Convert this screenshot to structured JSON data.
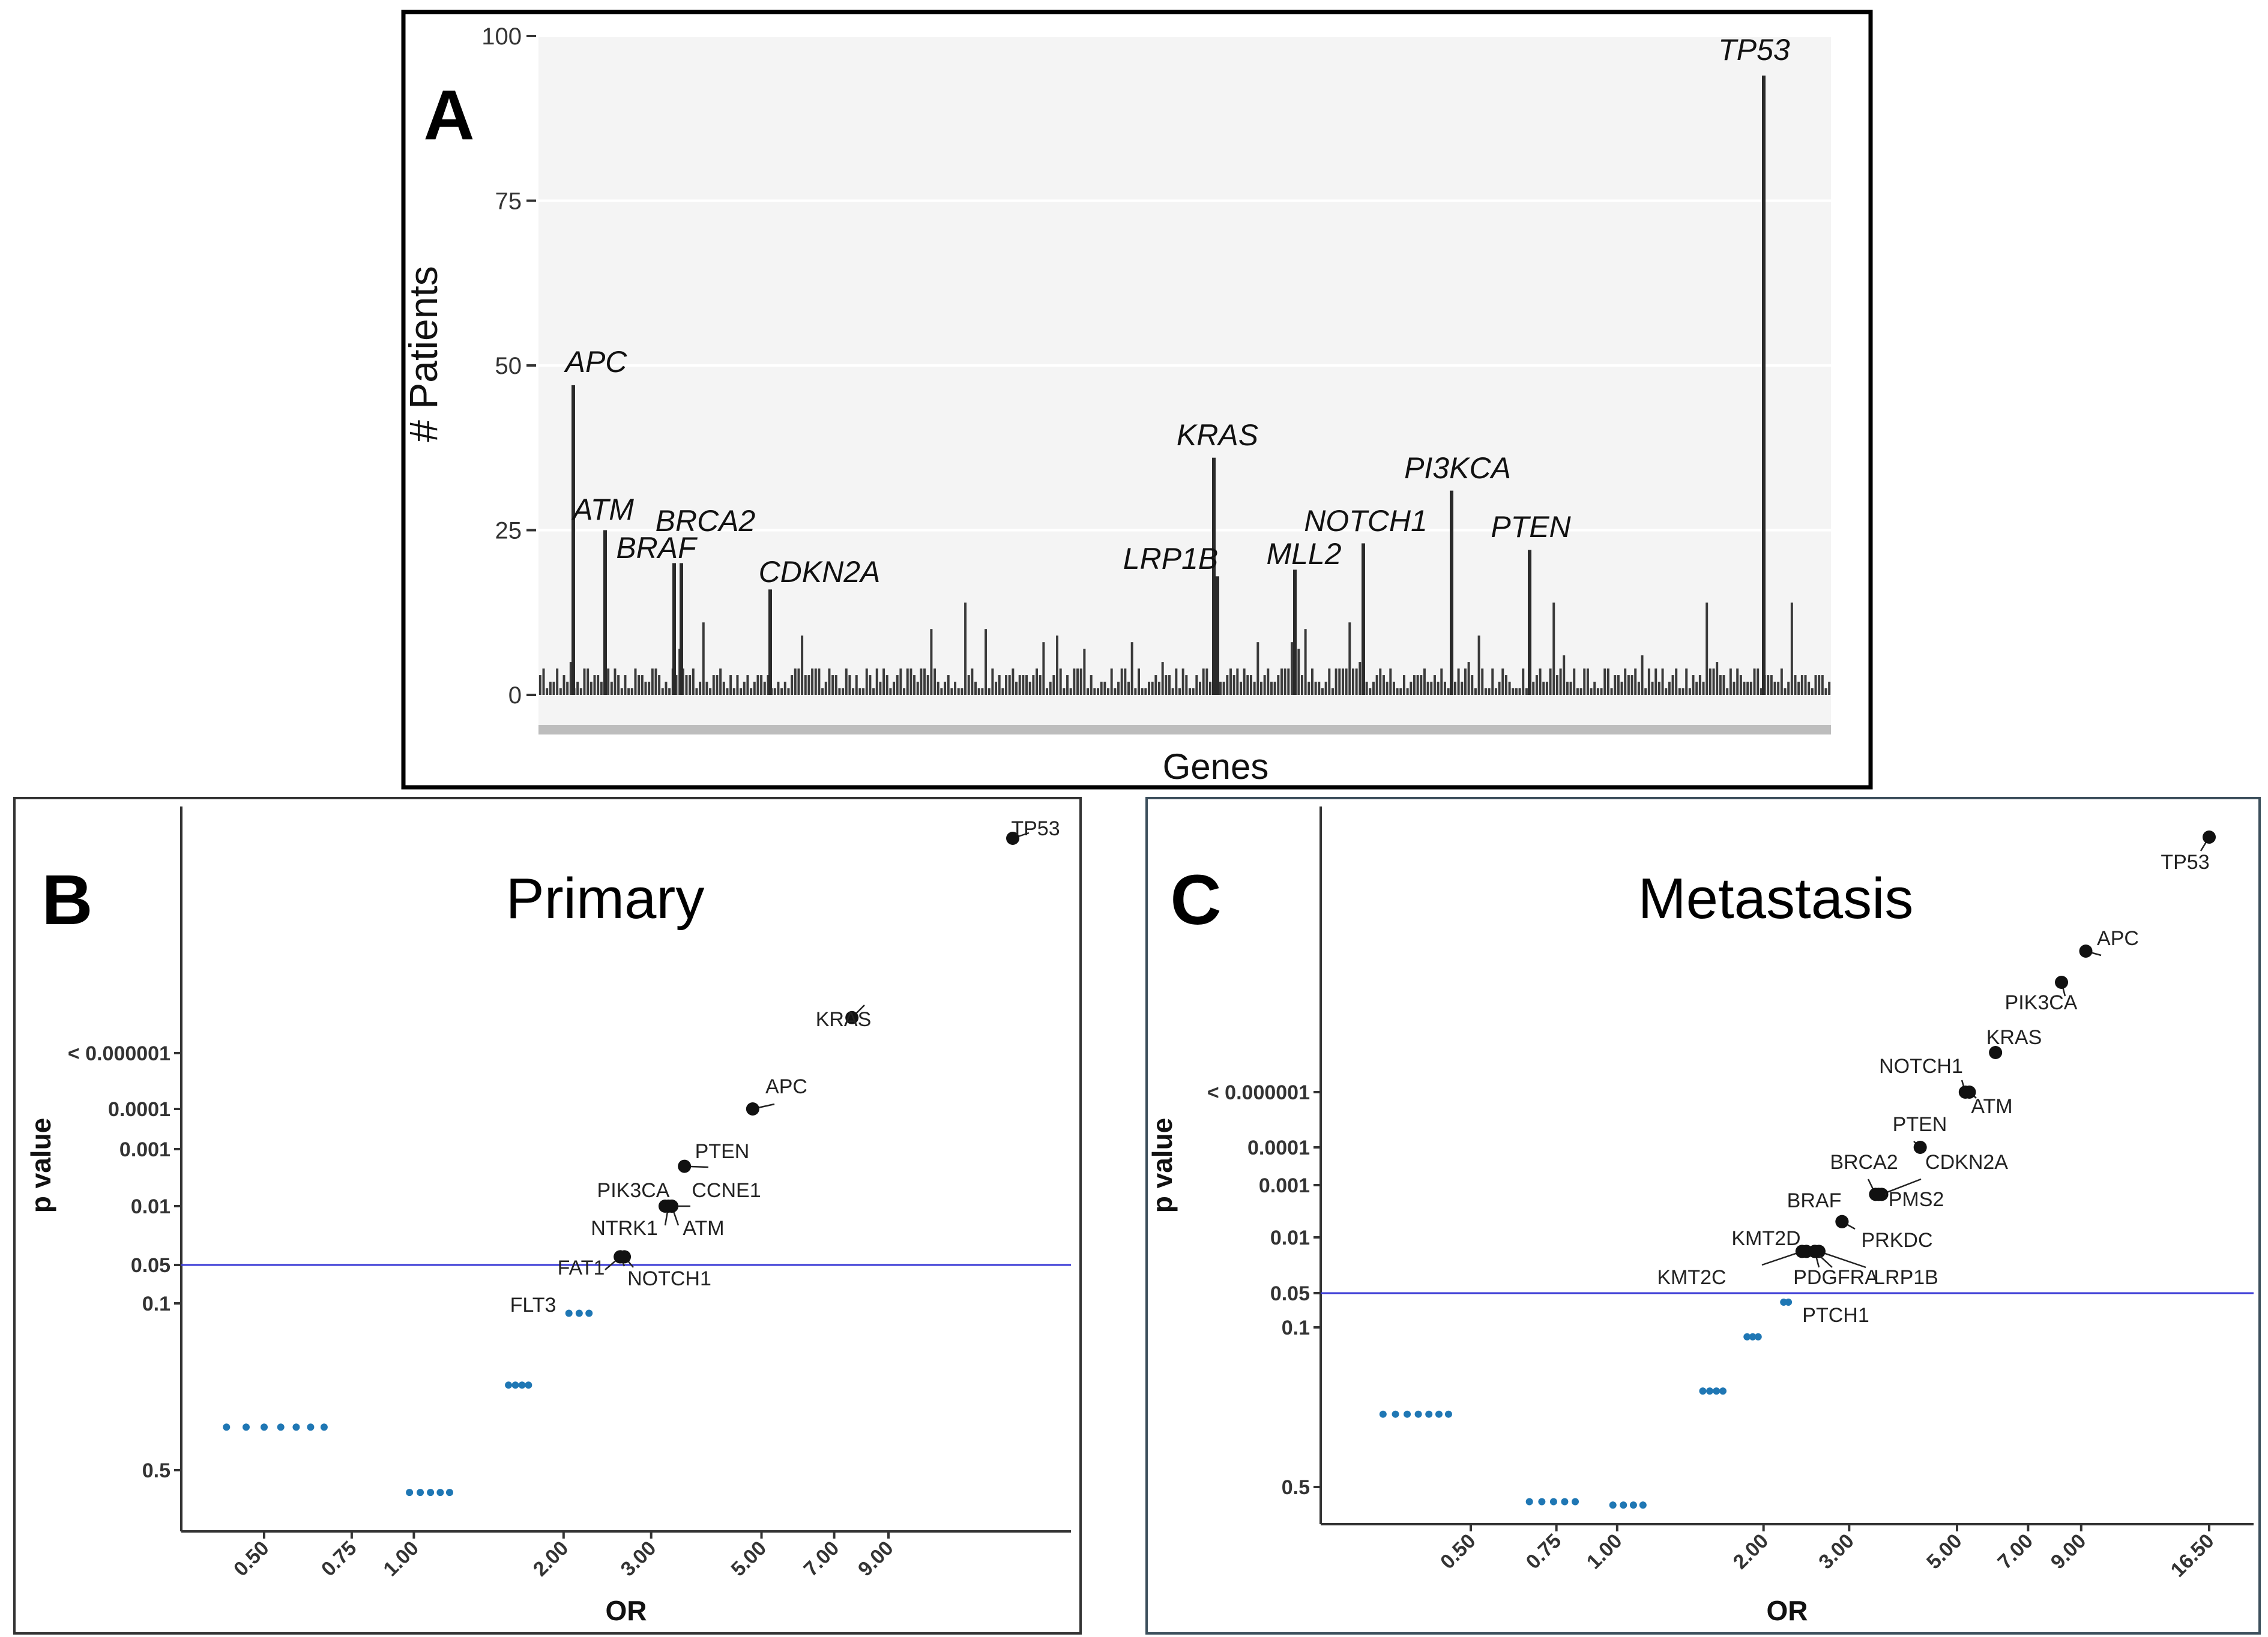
{
  "figure": {
    "panel_a_letter": "A",
    "panel_b_letter": "B",
    "panel_c_letter": "C"
  },
  "chart_data": [
    {
      "panel": "A",
      "type": "bar",
      "title": "",
      "xlabel": "Genes",
      "ylabel": "# Patients",
      "ylim": [
        0,
        100
      ],
      "yticks": [
        0,
        25,
        50,
        75,
        100
      ],
      "grid": true,
      "labeled_genes": [
        {
          "gene": "APC",
          "value": 47
        },
        {
          "gene": "ATM",
          "value": 25
        },
        {
          "gene": "BRCA2",
          "value": 20
        },
        {
          "gene": "BRAF",
          "value": 20
        },
        {
          "gene": "CDKN2A",
          "value": 16
        },
        {
          "gene": "KRAS",
          "value": 36
        },
        {
          "gene": "LRP1B",
          "value": 18
        },
        {
          "gene": "MLL2",
          "value": 19
        },
        {
          "gene": "NOTCH1",
          "value": 23
        },
        {
          "gene": "PI3KCA",
          "value": 31
        },
        {
          "gene": "PTEN",
          "value": 22
        },
        {
          "gene": "TP53",
          "value": 94
        }
      ]
    },
    {
      "panel": "B",
      "type": "scatter",
      "title": "Primary",
      "xlabel": "OR",
      "ylabel": "p value",
      "xscale": "log",
      "xticks": [
        "0.50",
        "0.75",
        "1.00",
        "2.00",
        "3.00",
        "5.00",
        "7.00",
        "9.00"
      ],
      "yscale": "-log10",
      "yticks": [
        "0.5",
        "0.1",
        "0.05",
        "0.01",
        "0.001",
        "0.0001",
        "< 0.000001"
      ],
      "significance_line_p": 0.05,
      "labeled_points": [
        {
          "gene": "TP53",
          "or": 16,
          "p": 1e-10
        },
        {
          "gene": "KRAS",
          "or": 7.6,
          "p": 5e-08
        },
        {
          "gene": "APC",
          "or": 4.8,
          "p": 0.0001
        },
        {
          "gene": "PTEN",
          "or": 3.5,
          "p": 0.002
        },
        {
          "gene": "PIK3CA",
          "or": 3.2,
          "p": 0.01
        },
        {
          "gene": "CCNE1",
          "or": 3.3,
          "p": 0.01
        },
        {
          "gene": "NTRK1",
          "or": 3.25,
          "p": 0.01
        },
        {
          "gene": "ATM",
          "or": 3.3,
          "p": 0.01
        },
        {
          "gene": "FAT1",
          "or": 2.6,
          "p": 0.04
        },
        {
          "gene": "NOTCH1",
          "or": 2.65,
          "p": 0.04
        },
        {
          "gene": "FLT3",
          "or": 2.6,
          "p": 0.04
        }
      ],
      "nonsignificant_points": [
        {
          "or": 2.05,
          "p": 0.11
        },
        {
          "or": 2.15,
          "p": 0.11
        },
        {
          "or": 2.25,
          "p": 0.11
        },
        {
          "or": 1.55,
          "p": 0.22
        },
        {
          "or": 1.6,
          "p": 0.22
        },
        {
          "or": 1.65,
          "p": 0.22
        },
        {
          "or": 1.7,
          "p": 0.22
        },
        {
          "or": 0.42,
          "p": 0.33
        },
        {
          "or": 0.46,
          "p": 0.33
        },
        {
          "or": 0.5,
          "p": 0.33
        },
        {
          "or": 0.54,
          "p": 0.33
        },
        {
          "or": 0.58,
          "p": 0.33
        },
        {
          "or": 0.62,
          "p": 0.33
        },
        {
          "or": 0.66,
          "p": 0.33
        },
        {
          "or": 0.98,
          "p": 0.62
        },
        {
          "or": 1.03,
          "p": 0.62
        },
        {
          "or": 1.08,
          "p": 0.62
        },
        {
          "or": 1.13,
          "p": 0.62
        },
        {
          "or": 1.18,
          "p": 0.62
        }
      ]
    },
    {
      "panel": "C",
      "type": "scatter",
      "title": "Metastasis",
      "xlabel": "OR",
      "ylabel": "p value",
      "xscale": "log",
      "xticks": [
        "0.50",
        "0.75",
        "1.00",
        "2.00",
        "3.00",
        "5.00",
        "7.00",
        "9.00",
        "16.50"
      ],
      "yscale": "-log10",
      "yticks": [
        "0.5",
        "0.1",
        "0.05",
        "0.01",
        "0.001",
        "0.0001",
        "< 0.000001"
      ],
      "significance_line_p": 0.05,
      "labeled_points": [
        {
          "gene": "TP53",
          "or": 16.5,
          "p": 1e-14
        },
        {
          "gene": "APC",
          "or": 9.2,
          "p": 1e-11
        },
        {
          "gene": "PIK3CA",
          "or": 8.2,
          "p": 1e-10
        },
        {
          "gene": "KRAS",
          "or": 6.0,
          "p": 1e-08
        },
        {
          "gene": "NOTCH1",
          "or": 5.2,
          "p": 1e-06
        },
        {
          "gene": "ATM",
          "or": 5.3,
          "p": 1e-06
        },
        {
          "gene": "PTEN",
          "or": 4.2,
          "p": 0.0001
        },
        {
          "gene": "BRCA2",
          "or": 3.4,
          "p": 0.0015
        },
        {
          "gene": "CDKN2A",
          "or": 3.5,
          "p": 0.0015
        },
        {
          "gene": "PMS2",
          "or": 3.45,
          "p": 0.0015
        },
        {
          "gene": "BRAF",
          "or": 2.9,
          "p": 0.005
        },
        {
          "gene": "PRKDC",
          "or": 2.9,
          "p": 0.005
        },
        {
          "gene": "KMT2D",
          "or": 2.45,
          "p": 0.015
        },
        {
          "gene": "KMT2C",
          "or": 2.4,
          "p": 0.015
        },
        {
          "gene": "PDGFRA",
          "or": 2.55,
          "p": 0.015
        },
        {
          "gene": "LRP1B",
          "or": 2.6,
          "p": 0.015
        },
        {
          "gene": "PTCH1",
          "or": 2.55,
          "p": 0.015
        }
      ],
      "nonsignificant_points": [
        {
          "or": 2.2,
          "p": 0.06
        },
        {
          "or": 2.25,
          "p": 0.06
        },
        {
          "or": 1.85,
          "p": 0.11
        },
        {
          "or": 1.9,
          "p": 0.11
        },
        {
          "or": 1.95,
          "p": 0.11
        },
        {
          "or": 1.5,
          "p": 0.19
        },
        {
          "or": 1.55,
          "p": 0.19
        },
        {
          "or": 1.6,
          "p": 0.19
        },
        {
          "or": 1.65,
          "p": 0.19
        },
        {
          "or": 0.33,
          "p": 0.24
        },
        {
          "or": 0.35,
          "p": 0.24
        },
        {
          "or": 0.37,
          "p": 0.24
        },
        {
          "or": 0.39,
          "p": 0.24
        },
        {
          "or": 0.41,
          "p": 0.24
        },
        {
          "or": 0.43,
          "p": 0.24
        },
        {
          "or": 0.45,
          "p": 0.24
        },
        {
          "or": 0.66,
          "p": 0.58
        },
        {
          "or": 0.7,
          "p": 0.58
        },
        {
          "or": 0.74,
          "p": 0.58
        },
        {
          "or": 0.78,
          "p": 0.58
        },
        {
          "or": 0.82,
          "p": 0.58
        },
        {
          "or": 0.98,
          "p": 0.6
        },
        {
          "or": 1.03,
          "p": 0.6
        },
        {
          "or": 1.08,
          "p": 0.6
        },
        {
          "or": 1.13,
          "p": 0.6
        }
      ]
    }
  ]
}
